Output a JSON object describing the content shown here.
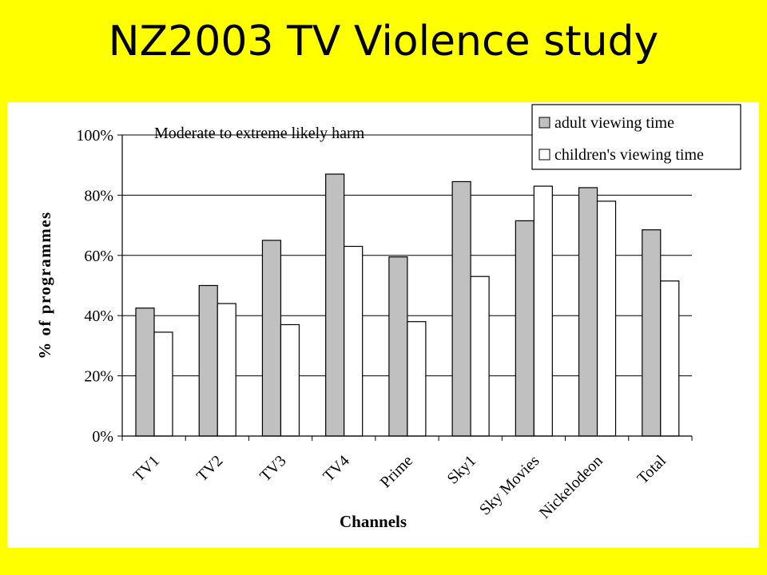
{
  "slide": {
    "title": "NZ2003 TV Violence study"
  },
  "chart_data": {
    "type": "bar",
    "annotation": "Moderate to extreme likely harm",
    "xlabel": "Channels",
    "ylabel": "% of programmes",
    "categories": [
      "TV1",
      "TV2",
      "TV3",
      "TV4",
      "Prime",
      "Sky1",
      "Sky Movies",
      "Nickelodeon",
      "Total"
    ],
    "ylim": [
      0,
      100
    ],
    "yticks": [
      "0%",
      "20%",
      "40%",
      "60%",
      "80%",
      "100%"
    ],
    "grid": true,
    "legend_position": "top-right",
    "series": [
      {
        "name": "adult viewing time",
        "color": "#c0c0c0",
        "values": [
          42.5,
          50,
          65,
          87,
          59.5,
          84.5,
          71.5,
          82.5,
          68.5
        ]
      },
      {
        "name": "children's viewing time",
        "color": "#ffffff",
        "values": [
          34.5,
          44,
          37,
          63,
          38,
          53,
          83,
          78,
          51.5
        ]
      }
    ]
  }
}
